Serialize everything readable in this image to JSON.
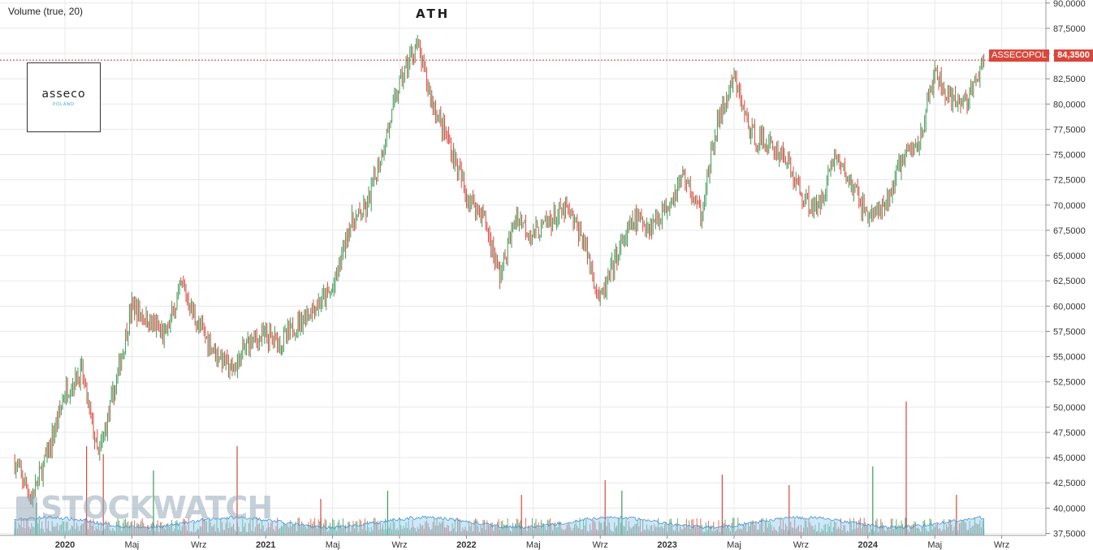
{
  "header": {
    "volume_label": "Volume (true, 20)"
  },
  "annotation": {
    "ath_label": "ATH"
  },
  "logo": {
    "brand": "asseco",
    "sub": "POLAND"
  },
  "watermark": {
    "text": "STOCKWATCH"
  },
  "ticker": {
    "symbol": "ASSECOPOL",
    "last_price_label": "84,3500",
    "last_price": 84.35
  },
  "colors": {
    "up": "#3c9a55",
    "down": "#d9473b",
    "volume_ma": "#8ecbf0",
    "grid": "#e8e8e8",
    "price_line": "#c0392b"
  },
  "chart_data": {
    "type": "candlestick",
    "title": "",
    "x_tick_labels": [
      "2020",
      "Maj",
      "Wrz",
      "2021",
      "Maj",
      "Wrz",
      "2022",
      "Maj",
      "Wrz",
      "2023",
      "Maj",
      "Wrz",
      "2024",
      "Maj",
      "Wrz"
    ],
    "y_tick_values": [
      37.5,
      40,
      42.5,
      45,
      47.5,
      50,
      52.5,
      55,
      57.5,
      60,
      62.5,
      65,
      67.5,
      70,
      72.5,
      75,
      77.5,
      80,
      82.5,
      85,
      87.5,
      90
    ],
    "y_tick_labels": [
      "37,5000",
      "40,0000",
      "42,5000",
      "45,0000",
      "47,5000",
      "50,0000",
      "52,5000",
      "55,0000",
      "57,5000",
      "60,0000",
      "62,5000",
      "65,0000",
      "67,5000",
      "70,0000",
      "72,5000",
      "75,0000",
      "77,5000",
      "80,0000",
      "82,5000",
      "85,0000",
      "87,5000",
      "90,0000"
    ],
    "ylim": [
      37.3,
      90.3
    ],
    "grid": true,
    "series": [
      {
        "name": "ASSECOPOL",
        "approx_path_date": [
          "2019-10",
          "2019-11",
          "2019-12",
          "2020-01",
          "2020-02",
          "2020-03",
          "2020-04",
          "2020-05",
          "2020-06",
          "2020-07",
          "2020-08",
          "2020-09",
          "2020-10",
          "2020-11",
          "2020-12",
          "2021-01",
          "2021-02",
          "2021-03",
          "2021-04",
          "2021-05",
          "2021-06",
          "2021-07",
          "2021-08",
          "2021-09",
          "2021-10",
          "2021-11",
          "2021-12",
          "2022-01",
          "2022-02",
          "2022-03",
          "2022-04",
          "2022-05",
          "2022-06",
          "2022-07",
          "2022-08",
          "2022-09",
          "2022-10",
          "2022-11",
          "2022-12",
          "2023-01",
          "2023-02",
          "2023-03",
          "2023-04",
          "2023-05",
          "2023-06",
          "2023-07",
          "2023-08",
          "2023-09",
          "2023-10",
          "2023-11",
          "2023-12",
          "2024-01",
          "2024-02",
          "2024-03",
          "2024-04",
          "2024-05",
          "2024-06",
          "2024-07",
          "2024-08"
        ],
        "approx_path_close": [
          44.5,
          41.0,
          45.5,
          51.5,
          53.5,
          45.0,
          52.0,
          60.0,
          58.5,
          57.0,
          62.0,
          58.0,
          55.5,
          53.5,
          56.5,
          57.0,
          56.5,
          58.5,
          60.0,
          61.5,
          68.0,
          69.5,
          75.5,
          82.0,
          86.0,
          80.0,
          76.0,
          71.0,
          69.0,
          63.0,
          69.0,
          67.0,
          68.5,
          69.5,
          66.5,
          60.5,
          65.0,
          68.5,
          68.0,
          70.0,
          73.0,
          69.0,
          78.0,
          82.5,
          77.0,
          76.0,
          75.0,
          71.0,
          69.5,
          75.0,
          72.0,
          69.0,
          69.5,
          74.5,
          76.0,
          83.0,
          80.0,
          80.5,
          84.35
        ]
      }
    ],
    "volume": {
      "label": "Volume (true, 20)",
      "spike_dates": [
        "2019-11",
        "2020-02",
        "2020-03",
        "2020-06",
        "2020-11",
        "2021-04",
        "2021-08",
        "2022-04",
        "2022-09",
        "2022-10",
        "2023-04",
        "2023-08",
        "2024-01",
        "2024-03",
        "2024-06"
      ]
    },
    "annotations": [
      {
        "text": "ATH",
        "x": "2021-10"
      }
    ],
    "last_price": 84.35
  }
}
